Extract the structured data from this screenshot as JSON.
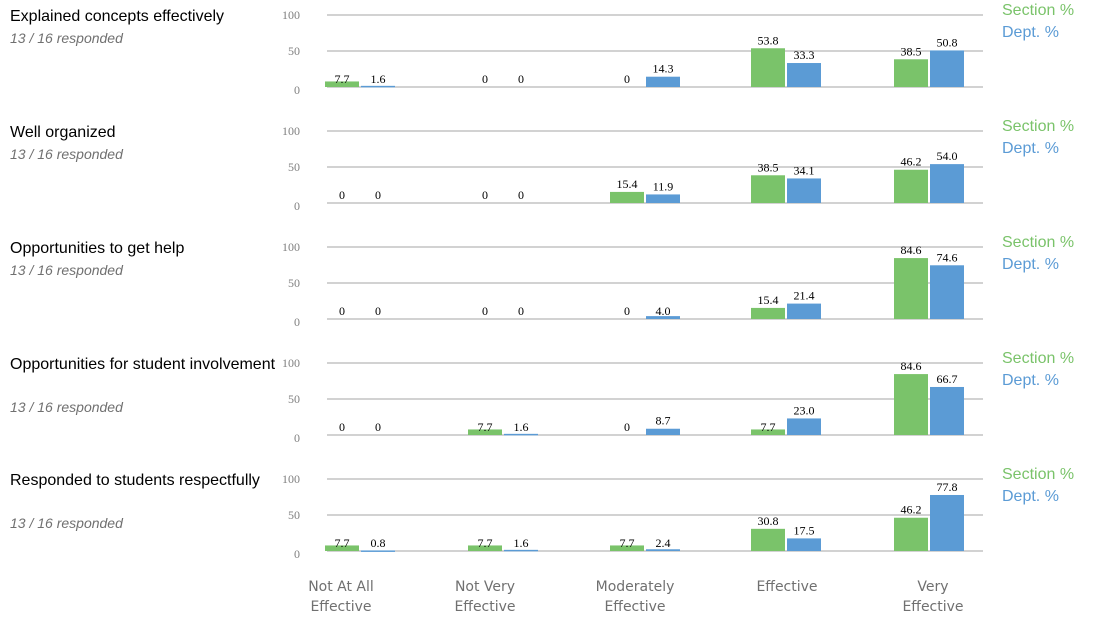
{
  "categories": [
    "Not At All\nEffective",
    "Not Very\nEffective",
    "Moderately\nEffective",
    "Effective",
    "Very\nEffective"
  ],
  "legend": {
    "section": "Section %",
    "dept": "Dept. %"
  },
  "colors": {
    "section": "#7ac36a",
    "dept": "#5b9bd5",
    "grid": "#a6a6a6"
  },
  "y_ticks": [
    0,
    50,
    100
  ],
  "chart_data": [
    {
      "type": "bar",
      "title": "Explained concepts effectively",
      "subtitle": "13 / 16 responded",
      "ylim": [
        0,
        100
      ],
      "categories": [
        "Not At All Effective",
        "Not Very Effective",
        "Moderately Effective",
        "Effective",
        "Very Effective"
      ],
      "series": [
        {
          "name": "Section %",
          "values": [
            "7.7",
            "0",
            "0",
            "53.8",
            "38.5"
          ]
        },
        {
          "name": "Dept. %",
          "values": [
            "1.6",
            "0",
            "14.3",
            "33.3",
            "50.8"
          ]
        }
      ]
    },
    {
      "type": "bar",
      "title": "Well organized",
      "subtitle": "13 / 16 responded",
      "ylim": [
        0,
        100
      ],
      "categories": [
        "Not At All Effective",
        "Not Very Effective",
        "Moderately Effective",
        "Effective",
        "Very Effective"
      ],
      "series": [
        {
          "name": "Section %",
          "values": [
            "0",
            "0",
            "15.4",
            "38.5",
            "46.2"
          ]
        },
        {
          "name": "Dept. %",
          "values": [
            "0",
            "0",
            "11.9",
            "34.1",
            "54.0"
          ]
        }
      ]
    },
    {
      "type": "bar",
      "title": "Opportunities to get help",
      "subtitle": "13 / 16 responded",
      "ylim": [
        0,
        100
      ],
      "categories": [
        "Not At All Effective",
        "Not Very Effective",
        "Moderately Effective",
        "Effective",
        "Very Effective"
      ],
      "series": [
        {
          "name": "Section %",
          "values": [
            "0",
            "0",
            "0",
            "15.4",
            "84.6"
          ]
        },
        {
          "name": "Dept. %",
          "values": [
            "0",
            "0",
            "4.0",
            "21.4",
            "74.6"
          ]
        }
      ]
    },
    {
      "type": "bar",
      "title": "Opportunities for student involvement",
      "subtitle": "13 / 16 responded",
      "ylim": [
        0,
        100
      ],
      "categories": [
        "Not At All Effective",
        "Not Very Effective",
        "Moderately Effective",
        "Effective",
        "Very Effective"
      ],
      "series": [
        {
          "name": "Section %",
          "values": [
            "0",
            "7.7",
            "0",
            "7.7",
            "84.6"
          ]
        },
        {
          "name": "Dept. %",
          "values": [
            "0",
            "1.6",
            "8.7",
            "23.0",
            "66.7"
          ]
        }
      ]
    },
    {
      "type": "bar",
      "title": "Responded to students respectfully",
      "subtitle": "13 / 16 responded",
      "ylim": [
        0,
        100
      ],
      "categories": [
        "Not At All Effective",
        "Not Very Effective",
        "Moderately Effective",
        "Effective",
        "Very Effective"
      ],
      "series": [
        {
          "name": "Section %",
          "values": [
            "7.7",
            "7.7",
            "7.7",
            "30.8",
            "46.2"
          ]
        },
        {
          "name": "Dept. %",
          "values": [
            "0.8",
            "1.6",
            "2.4",
            "17.5",
            "77.8"
          ]
        }
      ]
    }
  ]
}
